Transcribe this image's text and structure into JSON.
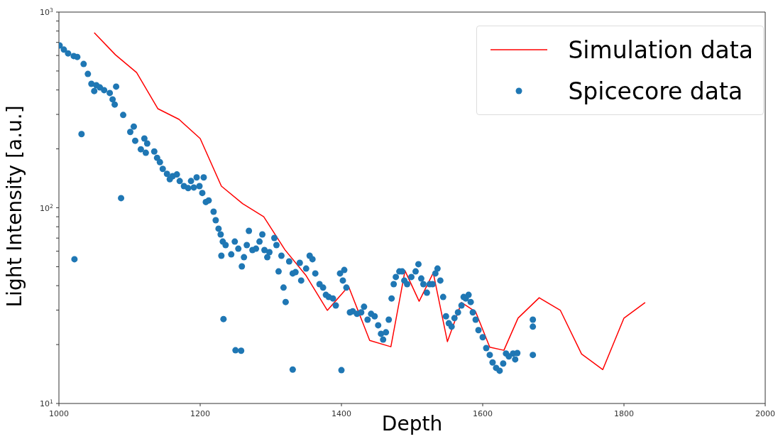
{
  "chart_data": {
    "type": "scatter",
    "xlabel": "Depth",
    "ylabel": "Light Intensity [a.u.]",
    "xlim": [
      1000,
      2000
    ],
    "xticks": [
      1000,
      1200,
      1400,
      1600,
      1800,
      2000
    ],
    "ylim": [
      10,
      1000
    ],
    "log": "y",
    "yticks": [
      {
        "value": 10,
        "label": "10$^{1}$"
      },
      {
        "value": 20,
        "label": null
      },
      {
        "value": 30,
        "label": null
      },
      {
        "value": 40,
        "label": null
      },
      {
        "value": 50,
        "label": null
      },
      {
        "value": 60,
        "label": null
      },
      {
        "value": 70,
        "label": null
      },
      {
        "value": 80,
        "label": null
      },
      {
        "value": 90,
        "label": null
      },
      {
        "value": 100,
        "label": "10$^{2}$"
      },
      {
        "value": 200,
        "label": null
      },
      {
        "value": 300,
        "label": null
      },
      {
        "value": 400,
        "label": null
      },
      {
        "value": 500,
        "label": null
      },
      {
        "value": 600,
        "label": null
      },
      {
        "value": 700,
        "label": null
      },
      {
        "value": 800,
        "label": null
      },
      {
        "value": 900,
        "label": null
      },
      {
        "value": 1000,
        "label": "10$^{3}$"
      }
    ],
    "grid": false,
    "legend": "top right",
    "series": [
      {
        "name": "Simulation data",
        "type": "line",
        "color": "#ff0000",
        "marker": "none",
        "line_style": "solid",
        "x": [
          1050,
          1080,
          1110,
          1140,
          1170,
          1200,
          1230,
          1260,
          1290,
          1320,
          1350,
          1380,
          1410,
          1440,
          1470,
          1490,
          1510,
          1530,
          1550,
          1570,
          1590,
          1610,
          1630,
          1650,
          1680,
          1710,
          1740,
          1770,
          1800,
          1830
        ],
        "values": [
          785,
          605,
          491,
          321,
          283,
          226,
          129,
          105,
          90,
          61,
          45,
          29.9,
          39.7,
          21.0,
          19.5,
          47.7,
          33.3,
          46.5,
          20.7,
          32.8,
          29.4,
          19.4,
          18.7,
          27.3,
          34.7,
          29.9,
          17.9,
          14.9,
          27.3,
          32.8
        ]
      },
      {
        "name": "Spicecore data",
        "color": "#1f77b4",
        "marker": "circle",
        "x": [
          1001,
          1007,
          1013,
          1021,
          1026,
          1035,
          1041,
          1046,
          1053,
          1058,
          1050,
          1064,
          1072,
          1076,
          1079,
          1081,
          1091,
          1101,
          1106,
          1108,
          1116,
          1121,
          1125,
          1123,
          1135,
          1139,
          1143,
          1147,
          1153,
          1157,
          1161,
          1167,
          1171,
          1177,
          1183,
          1187,
          1191,
          1195,
          1199,
          1203,
          1205,
          1208,
          1212,
          1219,
          1222,
          1226,
          1229,
          1232,
          1230,
          1236,
          1244,
          1249,
          1254,
          1259,
          1262,
          1266,
          1269,
          1274,
          1279,
          1284,
          1288,
          1291,
          1295,
          1298,
          1305,
          1308,
          1311,
          1315,
          1318,
          1321,
          1326,
          1331,
          1335,
          1341,
          1343,
          1350,
          1355,
          1359,
          1363,
          1369,
          1374,
          1378,
          1382,
          1388,
          1392,
          1398,
          1402,
          1404,
          1407,
          1412,
          1416,
          1422,
          1428,
          1432,
          1437,
          1442,
          1447,
          1452,
          1456,
          1459,
          1463,
          1467,
          1471,
          1474,
          1477,
          1482,
          1486,
          1489,
          1493,
          1499,
          1505,
          1509,
          1513,
          1516,
          1521,
          1525,
          1529,
          1533,
          1536,
          1540,
          1544,
          1548,
          1552,
          1556,
          1560,
          1565,
          1570,
          1573,
          1576,
          1580,
          1583,
          1586,
          1590,
          1594,
          1600,
          1605,
          1610,
          1614,
          1619,
          1624,
          1629,
          1633,
          1637,
          1643,
          1646,
          1649,
          1671,
          1671,
          1671,
          1032,
          1022,
          1088,
          1233,
          1250,
          1258,
          1331,
          1400
        ],
        "values": [
          675,
          643,
          615,
          596,
          590,
          543,
          483,
          430,
          423,
          412,
          395,
          399,
          386,
          358,
          337,
          416,
          298,
          244,
          260,
          220,
          199,
          226,
          213,
          191,
          194,
          180,
          171,
          158,
          149,
          140,
          145,
          148,
          137,
          129,
          126,
          137,
          127,
          143,
          129,
          119,
          143,
          107,
          109,
          95.5,
          86.4,
          78.2,
          73.1,
          67.2,
          56.9,
          64.5,
          57.8,
          67.2,
          61.8,
          50.2,
          55.9,
          64.5,
          76.2,
          60.8,
          61.8,
          67.2,
          73.1,
          60.8,
          55.9,
          59.3,
          70.1,
          64.5,
          47.3,
          56.9,
          39.1,
          33.0,
          53.2,
          46.2,
          46.9,
          52.3,
          42.5,
          48.9,
          56.9,
          54.6,
          46.2,
          40.7,
          39.1,
          35.9,
          35.0,
          34.4,
          31.7,
          46.2,
          42.5,
          48.1,
          39.1,
          29.2,
          29.6,
          28.7,
          29.2,
          31.2,
          26.8,
          28.7,
          27.9,
          25.1,
          22.7,
          21.2,
          23.1,
          26.8,
          34.4,
          40.7,
          44.3,
          47.3,
          47.3,
          42.5,
          40.7,
          44.3,
          47.3,
          51.5,
          43.5,
          40.7,
          36.8,
          40.7,
          40.7,
          46.2,
          48.9,
          42.5,
          35.0,
          27.9,
          25.7,
          24.7,
          27.3,
          29.2,
          31.7,
          35.0,
          34.4,
          35.9,
          33.0,
          29.2,
          26.8,
          23.7,
          21.8,
          19.2,
          17.7,
          16.2,
          15.2,
          14.7,
          16.0,
          18.0,
          17.4,
          18.0,
          16.8,
          18.1,
          26.8,
          24.7,
          17.7,
          238,
          54.6,
          112,
          27.0,
          18.7,
          18.6,
          14.9,
          14.8
        ]
      }
    ]
  }
}
